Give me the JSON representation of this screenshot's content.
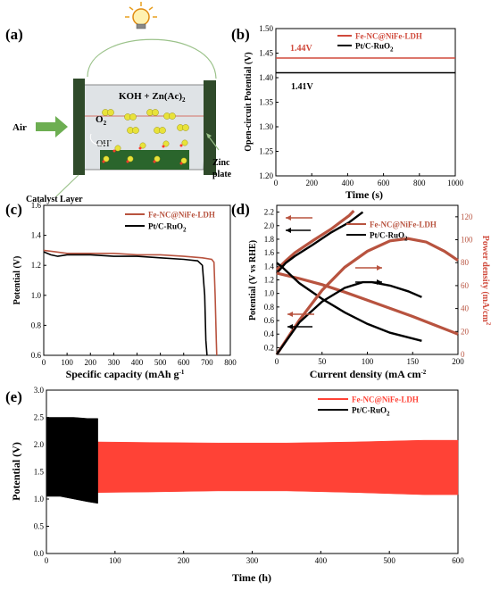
{
  "panels": {
    "a": {
      "label": "(a)",
      "electrolyte": "KOH + Zn(Ac)",
      "electrolyte_sub": "2",
      "o2": "O",
      "o2_sub": "2",
      "oh": "OH",
      "oh_sup": "-",
      "air": "Air",
      "zinc_line1": "Zinc",
      "zinc_line2": "plate",
      "catalyst": "Catalyst Layer"
    },
    "b": {
      "label": "(b)",
      "annot_red": "1.44V",
      "annot_black": "1.41V"
    },
    "c": {
      "label": "(c)"
    },
    "d": {
      "label": "(d)"
    },
    "e": {
      "label": "(e)"
    }
  },
  "colors": {
    "red": "#d04a3c",
    "brown": "#b8533f",
    "black": "#000000",
    "yellow": "#e8e23a",
    "casing": "#2f4a2a"
  },
  "chart_data": [
    {
      "id": "b",
      "type": "line",
      "xlabel": "Time (s)",
      "ylabel": "Open-circuit Potential (V)",
      "xlim": [
        0,
        1000
      ],
      "ylim": [
        1.2,
        1.5
      ],
      "xticks": [
        "0",
        "200",
        "400",
        "600",
        "800",
        "1000"
      ],
      "yticks": [
        "1.20",
        "1.25",
        "1.30",
        "1.35",
        "1.40",
        "1.45",
        "1.50"
      ],
      "legend_position": "top-right",
      "series": [
        {
          "name": "Fe-NC@NiFe-LDH",
          "color": "#d04a3c",
          "x": [
            0,
            1000
          ],
          "y": [
            1.44,
            1.44
          ]
        },
        {
          "name": "Pt/C-RuO",
          "name_sub": "2",
          "color": "#000000",
          "x": [
            0,
            1000
          ],
          "y": [
            1.41,
            1.41
          ]
        }
      ]
    },
    {
      "id": "c",
      "type": "line",
      "xlabel": "Specific capacity (mAh g",
      "xlabel_sup": "-1",
      "ylabel": "Potential (V)",
      "xlim": [
        0,
        800
      ],
      "ylim": [
        0.6,
        1.6
      ],
      "xticks": [
        "0",
        "100",
        "200",
        "300",
        "400",
        "500",
        "600",
        "700",
        "800"
      ],
      "yticks": [
        "0.6",
        "0.8",
        "1.0",
        "1.2",
        "1.4",
        "1.6"
      ],
      "legend_position": "top-right",
      "series": [
        {
          "name": "Fe-NC@NiFe-LDH",
          "color": "#b8533f",
          "x": [
            0,
            50,
            100,
            200,
            300,
            400,
            500,
            600,
            680,
            720,
            730,
            735,
            740,
            742
          ],
          "y": [
            1.3,
            1.29,
            1.28,
            1.28,
            1.28,
            1.27,
            1.27,
            1.26,
            1.25,
            1.24,
            1.22,
            1.0,
            0.7,
            0.6
          ]
        },
        {
          "name": "Pt/C-RuO",
          "name_sub": "2",
          "color": "#000000",
          "x": [
            0,
            30,
            60,
            100,
            200,
            300,
            400,
            500,
            600,
            660,
            680,
            690,
            695,
            700
          ],
          "y": [
            1.29,
            1.27,
            1.26,
            1.27,
            1.27,
            1.26,
            1.26,
            1.25,
            1.24,
            1.23,
            1.2,
            1.0,
            0.7,
            0.6
          ]
        }
      ]
    },
    {
      "id": "d",
      "type": "line",
      "xlabel": "Current density (mA cm",
      "xlabel_sup": "-2",
      "ylabel": "Potential (V vs RHE)",
      "ylabel2": "Power density (mA/cm",
      "ylabel2_sup": "2",
      "xlim": [
        0,
        200
      ],
      "ylim": [
        0.1,
        2.3
      ],
      "y2lim": [
        0,
        130
      ],
      "xticks": [
        "0",
        "50",
        "100",
        "150",
        "200"
      ],
      "yticks": [
        "0.2",
        "0.4",
        "0.6",
        "0.8",
        "1.0",
        "1.2",
        "1.4",
        "1.6",
        "1.8",
        "2.0",
        "2.2"
      ],
      "y2ticks": [
        "0",
        "20",
        "40",
        "60",
        "80",
        "100",
        "120"
      ],
      "legend_position": "top-right",
      "series": [
        {
          "name": "Fe-NC@NiFe-LDH",
          "color": "#b8533f",
          "axis": "y",
          "kind": "charge",
          "x": [
            0,
            10,
            20,
            40,
            60,
            80,
            85
          ],
          "y": [
            1.35,
            1.48,
            1.6,
            1.78,
            1.95,
            2.15,
            2.22
          ]
        },
        {
          "name": "Pt/C-RuO",
          "name_sub": "2",
          "color": "#000000",
          "axis": "y",
          "kind": "charge",
          "x": [
            0,
            10,
            20,
            40,
            60,
            80,
            95
          ],
          "y": [
            1.3,
            1.45,
            1.55,
            1.72,
            1.9,
            2.05,
            2.2
          ]
        },
        {
          "name": "Fe-NC@NiFe-LDH",
          "color": "#b8533f",
          "axis": "y",
          "kind": "discharge",
          "x": [
            0,
            25,
            50,
            75,
            100,
            125,
            150,
            175,
            200
          ],
          "y": [
            1.3,
            1.22,
            1.13,
            1.02,
            0.9,
            0.78,
            0.66,
            0.53,
            0.4
          ]
        },
        {
          "name": "Pt/C-RuO",
          "name_sub": "2",
          "color": "#000000",
          "axis": "y",
          "kind": "discharge",
          "x": [
            0,
            5,
            25,
            50,
            75,
            100,
            125,
            160
          ],
          "y": [
            1.45,
            1.4,
            1.15,
            0.92,
            0.72,
            0.55,
            0.42,
            0.3
          ]
        },
        {
          "name": "Fe-NC@NiFe-LDH",
          "color": "#b8533f",
          "axis": "y2",
          "kind": "power",
          "x": [
            0,
            25,
            50,
            75,
            100,
            125,
            145,
            165,
            185,
            200
          ],
          "y": [
            0,
            30,
            56,
            76,
            90,
            99,
            101,
            98,
            90,
            82
          ]
        },
        {
          "name": "Pt/C-RuO",
          "name_sub": "2",
          "color": "#000000",
          "axis": "y2",
          "kind": "power",
          "x": [
            0,
            25,
            50,
            75,
            95,
            105,
            125,
            145,
            160
          ],
          "y": [
            0,
            28,
            46,
            58,
            63,
            63,
            60,
            55,
            50
          ]
        }
      ]
    },
    {
      "id": "e",
      "type": "area",
      "xlabel": "Time (h)",
      "ylabel": "Potential (V)",
      "xlim": [
        0,
        600
      ],
      "ylim": [
        0,
        3
      ],
      "xticks": [
        "0",
        "100",
        "200",
        "300",
        "400",
        "500",
        "600"
      ],
      "yticks": [
        "0.0",
        "0.5",
        "1.0",
        "1.5",
        "2.0",
        "2.5",
        "3.0"
      ],
      "legend_position": "top-right",
      "series": [
        {
          "name": "Fe-NC@NiFe-LDH",
          "color": "#ff4236",
          "x": [
            75,
            150,
            250,
            350,
            450,
            550,
            600
          ],
          "upper": [
            2.05,
            2.04,
            2.03,
            2.03,
            2.05,
            2.08,
            2.08
          ],
          "lower": [
            1.12,
            1.13,
            1.15,
            1.15,
            1.12,
            1.08,
            1.08
          ]
        },
        {
          "name": "Pt/C-RuO",
          "name_sub": "2",
          "color": "#000000",
          "x": [
            0,
            20,
            40,
            60,
            75
          ],
          "upper": [
            2.5,
            2.5,
            2.5,
            2.48,
            2.48
          ],
          "lower": [
            1.05,
            1.05,
            1.0,
            0.95,
            0.92
          ]
        }
      ]
    }
  ]
}
